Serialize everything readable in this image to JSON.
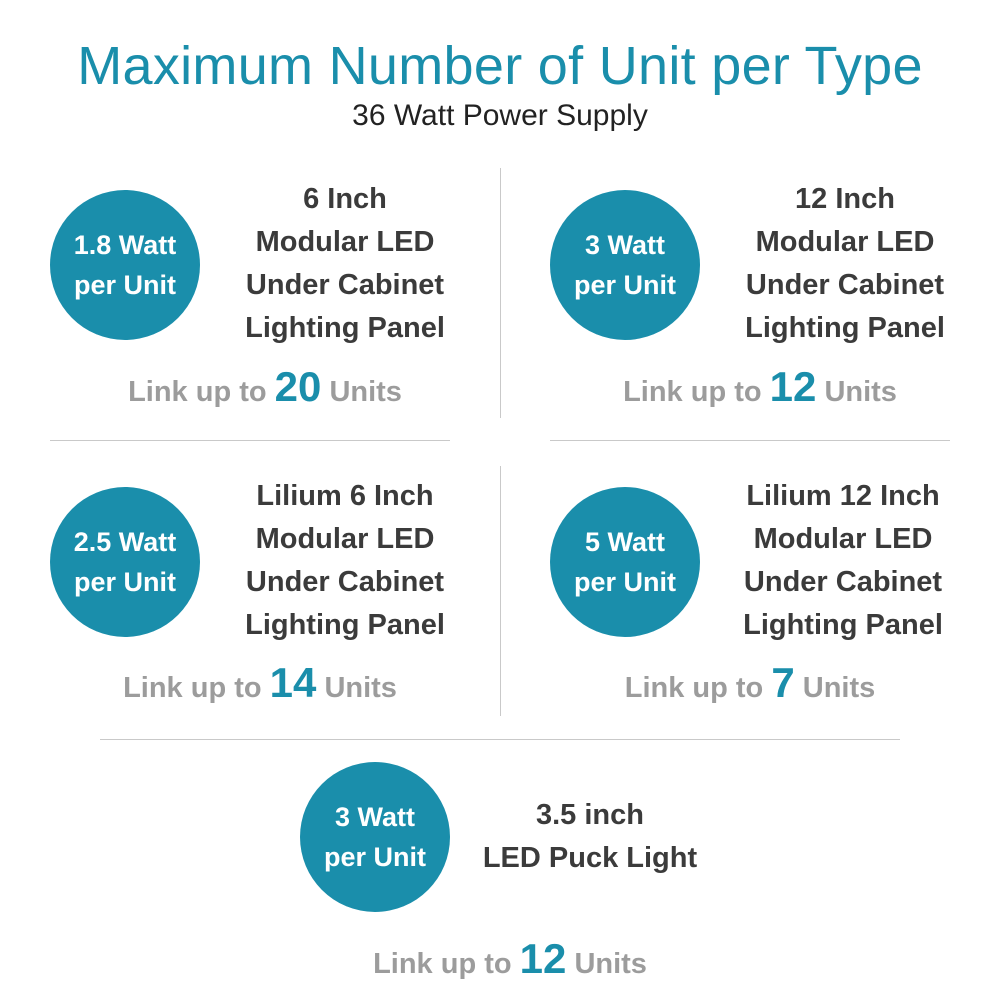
{
  "header": {
    "title": "Maximum Number of Unit per Type",
    "subtitle": "36 Watt Power Supply"
  },
  "colors": {
    "accent": "#1a8eab",
    "product_text": "#3b3b3b",
    "link_text": "#9c9c9c",
    "divider": "#c9c9c9"
  },
  "items": [
    {
      "watt_line1": "1.8 Watt",
      "watt_line2": "per Unit",
      "product": [
        "6 Inch",
        "Modular LED",
        "Under Cabinet",
        "Lighting Panel"
      ],
      "link_prefix": "Link up to",
      "link_count": "20",
      "link_suffix": "Units"
    },
    {
      "watt_line1": "3 Watt",
      "watt_line2": "per Unit",
      "product": [
        "12 Inch",
        "Modular LED",
        "Under Cabinet",
        "Lighting Panel"
      ],
      "link_prefix": "Link up to",
      "link_count": "12",
      "link_suffix": "Units"
    },
    {
      "watt_line1": "2.5 Watt",
      "watt_line2": "per Unit",
      "product": [
        "Lilium 6 Inch",
        "Modular LED",
        "Under Cabinet",
        "Lighting Panel"
      ],
      "link_prefix": "Link up to",
      "link_count": "14",
      "link_suffix": "Units"
    },
    {
      "watt_line1": "5 Watt",
      "watt_line2": "per Unit",
      "product": [
        "Lilium 12 Inch",
        "Modular LED",
        "Under Cabinet",
        "Lighting Panel"
      ],
      "link_prefix": "Link up to",
      "link_count": "7",
      "link_suffix": "Units"
    },
    {
      "watt_line1": "3 Watt",
      "watt_line2": "per Unit",
      "product": [
        "3.5 inch",
        "LED Puck Light"
      ],
      "link_prefix": "Link up to",
      "link_count": "12",
      "link_suffix": "Units"
    }
  ]
}
